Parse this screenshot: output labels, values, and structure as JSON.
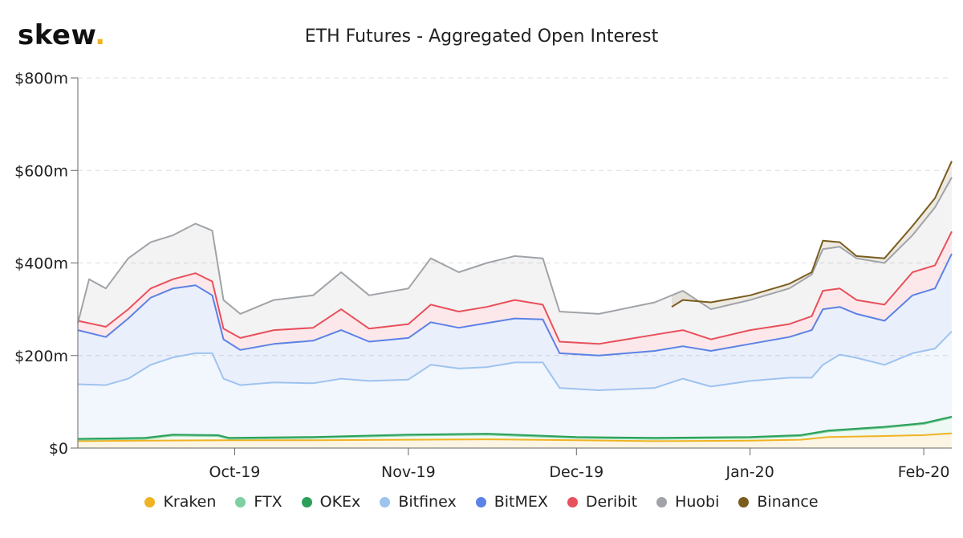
{
  "brand": {
    "name": "skew",
    "dot": "."
  },
  "chart_data": {
    "type": "area",
    "title": "ETH Futures - Aggregated Open Interest",
    "y_tick_labels": [
      "$0",
      "$200m",
      "$400m",
      "$600m",
      "$800m"
    ],
    "y_ticks": [
      0,
      200,
      400,
      600,
      800
    ],
    "ylim": [
      0,
      800
    ],
    "x_tick_labels": [
      "Oct-19",
      "Nov-19",
      "Dec-19",
      "Jan-20",
      "Feb-20"
    ],
    "x_ticks": [
      "2019-10-01",
      "2019-11-01",
      "2019-12-01",
      "2020-01-01",
      "2020-02-01"
    ],
    "xlim": [
      "2019-09-03",
      "2020-02-06"
    ],
    "stacked": true,
    "grid": "horizontal dashed",
    "legend_position": "bottom",
    "cumulative_series": [
      {
        "name": "Kraken",
        "color": "#f0b323",
        "points": [
          [
            "2019-09-03",
            15
          ],
          [
            "2019-09-15",
            16
          ],
          [
            "2019-09-30",
            17
          ],
          [
            "2019-10-15",
            17
          ],
          [
            "2019-11-01",
            18
          ],
          [
            "2019-11-15",
            19
          ],
          [
            "2019-12-01",
            17
          ],
          [
            "2019-12-15",
            15
          ],
          [
            "2020-01-01",
            16
          ],
          [
            "2020-01-10",
            18
          ],
          [
            "2020-01-15",
            24
          ],
          [
            "2020-01-25",
            26
          ],
          [
            "2020-02-01",
            28
          ],
          [
            "2020-02-06",
            32
          ]
        ]
      },
      {
        "name": "FTX",
        "color": "#7fd0a0",
        "points": [
          [
            "2019-09-03",
            18
          ],
          [
            "2019-09-15",
            20
          ],
          [
            "2019-09-20",
            27
          ],
          [
            "2019-09-28",
            26
          ],
          [
            "2019-09-30",
            20
          ],
          [
            "2019-10-15",
            22
          ],
          [
            "2019-11-01",
            27
          ],
          [
            "2019-11-15",
            29
          ],
          [
            "2019-12-01",
            22
          ],
          [
            "2019-12-15",
            20
          ],
          [
            "2020-01-01",
            22
          ],
          [
            "2020-01-10",
            26
          ],
          [
            "2020-01-15",
            36
          ],
          [
            "2020-01-25",
            44
          ],
          [
            "2020-02-01",
            52
          ],
          [
            "2020-02-06",
            66
          ]
        ]
      },
      {
        "name": "OKEx",
        "color": "#2ca05a",
        "points": [
          [
            "2019-09-03",
            20
          ],
          [
            "2019-09-15",
            22
          ],
          [
            "2019-09-20",
            29
          ],
          [
            "2019-09-28",
            28
          ],
          [
            "2019-09-30",
            22
          ],
          [
            "2019-10-15",
            24
          ],
          [
            "2019-11-01",
            29
          ],
          [
            "2019-11-15",
            31
          ],
          [
            "2019-12-01",
            24
          ],
          [
            "2019-12-15",
            22
          ],
          [
            "2020-01-01",
            24
          ],
          [
            "2020-01-10",
            28
          ],
          [
            "2020-01-15",
            38
          ],
          [
            "2020-01-25",
            46
          ],
          [
            "2020-02-01",
            54
          ],
          [
            "2020-02-06",
            68
          ]
        ]
      },
      {
        "name": "Bitfinex",
        "color": "#9ec3ef",
        "points": [
          [
            "2019-09-03",
            138
          ],
          [
            "2019-09-08",
            136
          ],
          [
            "2019-09-12",
            150
          ],
          [
            "2019-09-16",
            180
          ],
          [
            "2019-09-20",
            196
          ],
          [
            "2019-09-24",
            205
          ],
          [
            "2019-09-27",
            205
          ],
          [
            "2019-09-29",
            150
          ],
          [
            "2019-10-02",
            136
          ],
          [
            "2019-10-08",
            142
          ],
          [
            "2019-10-15",
            140
          ],
          [
            "2019-10-20",
            150
          ],
          [
            "2019-10-25",
            145
          ],
          [
            "2019-11-01",
            148
          ],
          [
            "2019-11-05",
            180
          ],
          [
            "2019-11-10",
            172
          ],
          [
            "2019-11-15",
            175
          ],
          [
            "2019-11-20",
            185
          ],
          [
            "2019-11-25",
            185
          ],
          [
            "2019-11-28",
            130
          ],
          [
            "2019-12-05",
            125
          ],
          [
            "2019-12-15",
            130
          ],
          [
            "2019-12-20",
            150
          ],
          [
            "2019-12-25",
            133
          ],
          [
            "2020-01-01",
            145
          ],
          [
            "2020-01-08",
            152
          ],
          [
            "2020-01-12",
            152
          ],
          [
            "2020-01-14",
            180
          ],
          [
            "2020-01-17",
            202
          ],
          [
            "2020-01-20",
            195
          ],
          [
            "2020-01-25",
            180
          ],
          [
            "2020-01-30",
            205
          ],
          [
            "2020-02-03",
            215
          ],
          [
            "2020-02-06",
            252
          ]
        ]
      },
      {
        "name": "BitMEX",
        "color": "#5b82e5",
        "points": [
          [
            "2019-09-03",
            255
          ],
          [
            "2019-09-08",
            240
          ],
          [
            "2019-09-12",
            280
          ],
          [
            "2019-09-16",
            325
          ],
          [
            "2019-09-20",
            345
          ],
          [
            "2019-09-24",
            352
          ],
          [
            "2019-09-27",
            330
          ],
          [
            "2019-09-29",
            235
          ],
          [
            "2019-10-02",
            212
          ],
          [
            "2019-10-08",
            225
          ],
          [
            "2019-10-15",
            232
          ],
          [
            "2019-10-20",
            255
          ],
          [
            "2019-10-25",
            230
          ],
          [
            "2019-11-01",
            238
          ],
          [
            "2019-11-05",
            272
          ],
          [
            "2019-11-10",
            260
          ],
          [
            "2019-11-15",
            270
          ],
          [
            "2019-11-20",
            280
          ],
          [
            "2019-11-25",
            278
          ],
          [
            "2019-11-28",
            205
          ],
          [
            "2019-12-05",
            200
          ],
          [
            "2019-12-15",
            210
          ],
          [
            "2019-12-20",
            220
          ],
          [
            "2019-12-25",
            210
          ],
          [
            "2020-01-01",
            225
          ],
          [
            "2020-01-08",
            240
          ],
          [
            "2020-01-12",
            255
          ],
          [
            "2020-01-14",
            300
          ],
          [
            "2020-01-17",
            305
          ],
          [
            "2020-01-20",
            290
          ],
          [
            "2020-01-25",
            275
          ],
          [
            "2020-01-30",
            330
          ],
          [
            "2020-02-03",
            345
          ],
          [
            "2020-02-06",
            420
          ]
        ]
      },
      {
        "name": "Deribit",
        "color": "#e8505b",
        "points": [
          [
            "2019-09-03",
            275
          ],
          [
            "2019-09-08",
            262
          ],
          [
            "2019-09-12",
            300
          ],
          [
            "2019-09-16",
            345
          ],
          [
            "2019-09-20",
            365
          ],
          [
            "2019-09-24",
            378
          ],
          [
            "2019-09-27",
            360
          ],
          [
            "2019-09-29",
            258
          ],
          [
            "2019-10-02",
            238
          ],
          [
            "2019-10-08",
            255
          ],
          [
            "2019-10-15",
            260
          ],
          [
            "2019-10-20",
            300
          ],
          [
            "2019-10-25",
            258
          ],
          [
            "2019-11-01",
            268
          ],
          [
            "2019-11-05",
            310
          ],
          [
            "2019-11-10",
            295
          ],
          [
            "2019-11-15",
            305
          ],
          [
            "2019-11-20",
            320
          ],
          [
            "2019-11-25",
            310
          ],
          [
            "2019-11-28",
            230
          ],
          [
            "2019-12-05",
            225
          ],
          [
            "2019-12-15",
            245
          ],
          [
            "2019-12-20",
            255
          ],
          [
            "2019-12-25",
            235
          ],
          [
            "2020-01-01",
            255
          ],
          [
            "2020-01-08",
            268
          ],
          [
            "2020-01-12",
            285
          ],
          [
            "2020-01-14",
            340
          ],
          [
            "2020-01-17",
            345
          ],
          [
            "2020-01-20",
            320
          ],
          [
            "2020-01-25",
            310
          ],
          [
            "2020-01-30",
            380
          ],
          [
            "2020-02-03",
            395
          ],
          [
            "2020-02-06",
            468
          ]
        ]
      },
      {
        "name": "Huobi",
        "color": "#a0a4a8",
        "points": [
          [
            "2019-09-03",
            270
          ],
          [
            "2019-09-05",
            365
          ],
          [
            "2019-09-08",
            345
          ],
          [
            "2019-09-12",
            410
          ],
          [
            "2019-09-16",
            445
          ],
          [
            "2019-09-20",
            460
          ],
          [
            "2019-09-24",
            485
          ],
          [
            "2019-09-27",
            470
          ],
          [
            "2019-09-29",
            320
          ],
          [
            "2019-10-02",
            290
          ],
          [
            "2019-10-08",
            320
          ],
          [
            "2019-10-15",
            330
          ],
          [
            "2019-10-20",
            380
          ],
          [
            "2019-10-25",
            330
          ],
          [
            "2019-11-01",
            345
          ],
          [
            "2019-11-05",
            410
          ],
          [
            "2019-11-10",
            380
          ],
          [
            "2019-11-15",
            400
          ],
          [
            "2019-11-20",
            415
          ],
          [
            "2019-11-25",
            410
          ],
          [
            "2019-11-28",
            295
          ],
          [
            "2019-12-05",
            290
          ],
          [
            "2019-12-15",
            315
          ],
          [
            "2019-12-20",
            340
          ],
          [
            "2019-12-25",
            300
          ],
          [
            "2020-01-01",
            320
          ],
          [
            "2020-01-08",
            345
          ],
          [
            "2020-01-12",
            375
          ],
          [
            "2020-01-14",
            430
          ],
          [
            "2020-01-17",
            435
          ],
          [
            "2020-01-20",
            410
          ],
          [
            "2020-01-25",
            400
          ],
          [
            "2020-01-30",
            460
          ],
          [
            "2020-02-03",
            520
          ],
          [
            "2020-02-06",
            585
          ]
        ]
      },
      {
        "name": "Binance",
        "color": "#7a5c1e",
        "points": [
          [
            "2019-12-18",
            305
          ],
          [
            "2019-12-20",
            320
          ],
          [
            "2019-12-25",
            315
          ],
          [
            "2020-01-01",
            330
          ],
          [
            "2020-01-08",
            355
          ],
          [
            "2020-01-12",
            380
          ],
          [
            "2020-01-14",
            448
          ],
          [
            "2020-01-17",
            445
          ],
          [
            "2020-01-20",
            415
          ],
          [
            "2020-01-25",
            410
          ],
          [
            "2020-01-30",
            480
          ],
          [
            "2020-02-03",
            540
          ],
          [
            "2020-02-06",
            620
          ]
        ]
      }
    ]
  }
}
